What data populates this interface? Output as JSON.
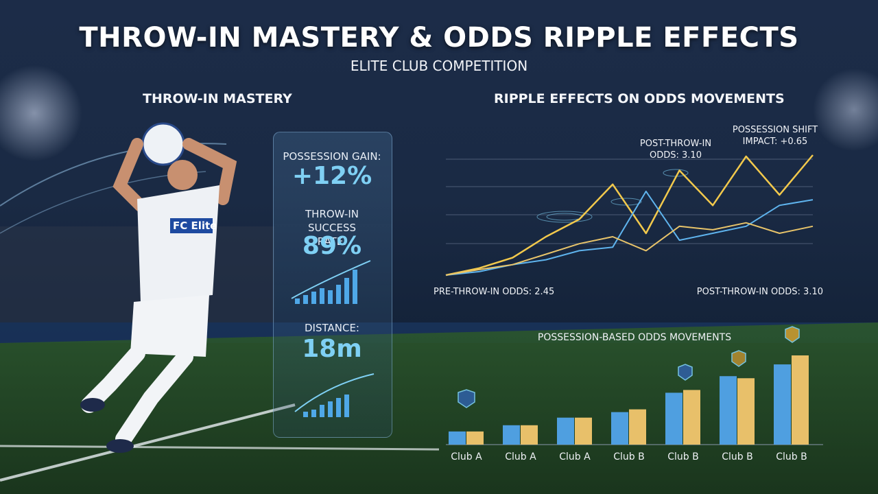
{
  "header": {
    "title": "THROW-IN MASTERY & ODDS RIPPLE EFFECTS",
    "subtitle": "ELITE CLUB COMPETITION"
  },
  "left_panel": {
    "heading": "THROW-IN MASTERY",
    "jersey_text": "FC Elite",
    "stats": [
      {
        "label": "POSSESSION GAIN:",
        "value": "+12%"
      },
      {
        "label": "THROW-IN SUCCESS RATE:",
        "value": "89%"
      },
      {
        "label": "DISTANCE:",
        "value": "18m"
      }
    ]
  },
  "chart_data": [
    {
      "type": "line",
      "title": "RIPPLE EFFECTS ON ODDS MOVEMENTS",
      "annotations": [
        "POST-THROW-IN ODDS: 3.10",
        "POSSESSION SHIFT IMPACT: +0.65",
        "PRE-THROW-IN ODDS: 2.45",
        "POST-THROW-IN ODDS: 3.10"
      ],
      "series": [
        {
          "color": "#f2c94c",
          "values": [
            0,
            10,
            25,
            55,
            80,
            130,
            60,
            150,
            100,
            170,
            115,
            172
          ]
        },
        {
          "color": "#5fb4ee",
          "values": [
            0,
            5,
            15,
            22,
            35,
            40,
            120,
            50,
            60,
            70,
            100,
            108
          ]
        },
        {
          "color": "#e8c46a",
          "values": [
            0,
            8,
            15,
            30,
            45,
            55,
            35,
            70,
            65,
            75,
            60,
            70
          ]
        }
      ]
    },
    {
      "type": "bar",
      "title": "POSSESSION-BASED ODDS MOVEMENTS",
      "categories": [
        "Club A",
        "Club A",
        "Club A",
        "Club B",
        "Club B",
        "Club B",
        "Club B"
      ],
      "series": [
        {
          "color": "#4f9fe0",
          "values": [
            19,
            28,
            39,
            47,
            75,
            99,
            116
          ]
        },
        {
          "color": "#e8c06a",
          "values": [
            19,
            28,
            39,
            51,
            79,
            96,
            129
          ]
        }
      ]
    }
  ]
}
